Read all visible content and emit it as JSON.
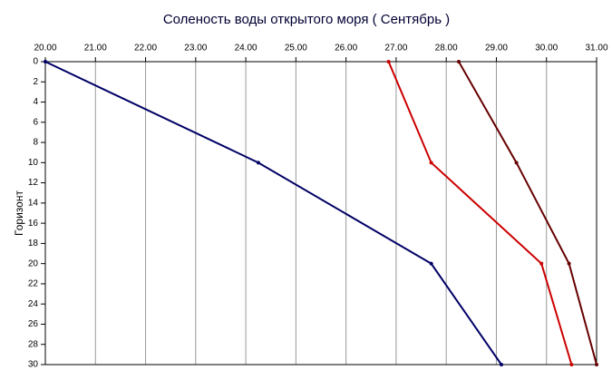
{
  "chart_data": {
    "type": "line",
    "title": "Соленость воды открытого моря    ( Сентябрь )",
    "y_label": "Горизонт",
    "y": [
      0,
      10,
      20,
      30
    ],
    "series": [
      {
        "color": "#000066",
        "values": [
          20.0,
          24.25,
          27.7,
          29.1
        ]
      },
      {
        "color": "#cc0000",
        "values": [
          26.85,
          27.7,
          29.9,
          30.5
        ]
      },
      {
        "color": "#660000",
        "values": [
          28.25,
          29.4,
          30.45,
          31.0
        ]
      }
    ],
    "xlim": [
      20,
      31
    ],
    "xticks": [
      {
        "value": 20,
        "label": "20.00"
      },
      {
        "value": 21,
        "label": "21.00"
      },
      {
        "value": 22,
        "label": "22.00"
      },
      {
        "value": 23,
        "label": "23.00"
      },
      {
        "value": 24,
        "label": "24.00"
      },
      {
        "value": 25,
        "label": "25.00"
      },
      {
        "value": 26,
        "label": "26.00"
      },
      {
        "value": 27,
        "label": "27.00"
      },
      {
        "value": 28,
        "label": "28.00"
      },
      {
        "value": 29,
        "label": "29.00"
      },
      {
        "value": 30,
        "label": "30.00"
      },
      {
        "value": 31,
        "label": "31.00"
      }
    ],
    "ylim": [
      0,
      30
    ],
    "yticks": [
      0,
      2,
      4,
      6,
      8,
      10,
      12,
      14,
      16,
      18,
      20,
      22,
      24,
      26,
      28,
      30
    ],
    "y_inverted": true,
    "grid": true
  }
}
